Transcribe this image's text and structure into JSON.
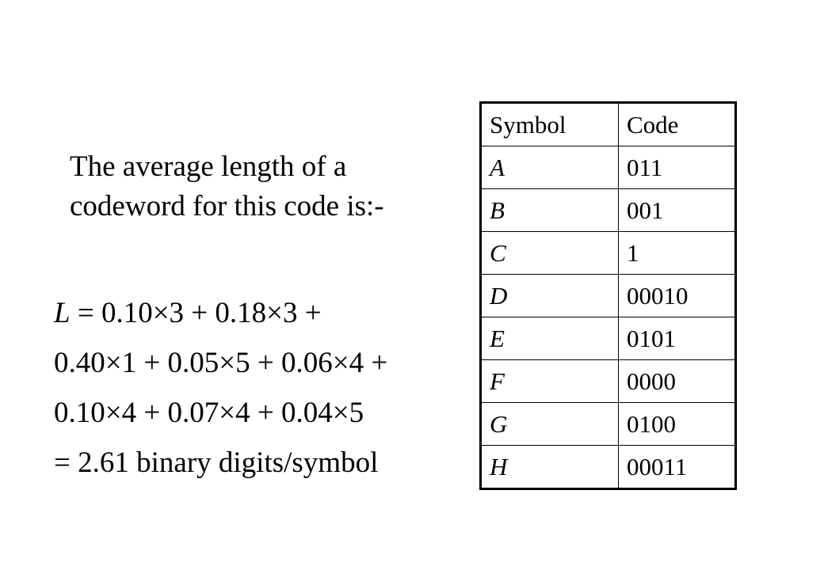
{
  "intro": {
    "line1": "The average length of a",
    "line2": "codeword for this code is:-"
  },
  "formula": {
    "variable": "L",
    "line1_rest": " = 0.10×3 + 0.18×3 +",
    "line2": "0.40×1 + 0.05×5 + 0.06×4 +",
    "line3": "0.10×4 + 0.07×4 + 0.04×5",
    "line4": "= 2.61 binary digits/symbol"
  },
  "table": {
    "headers": [
      "Symbol",
      "Code"
    ],
    "rows": [
      {
        "symbol": "A",
        "code": "011"
      },
      {
        "symbol": "B",
        "code": "001"
      },
      {
        "symbol": "C",
        "code": "1"
      },
      {
        "symbol": "D",
        "code": "00010"
      },
      {
        "symbol": "E",
        "code": "0101"
      },
      {
        "symbol": "F",
        "code": "0000"
      },
      {
        "symbol": "G",
        "code": "0100"
      },
      {
        "symbol": "H",
        "code": "00011"
      }
    ]
  }
}
